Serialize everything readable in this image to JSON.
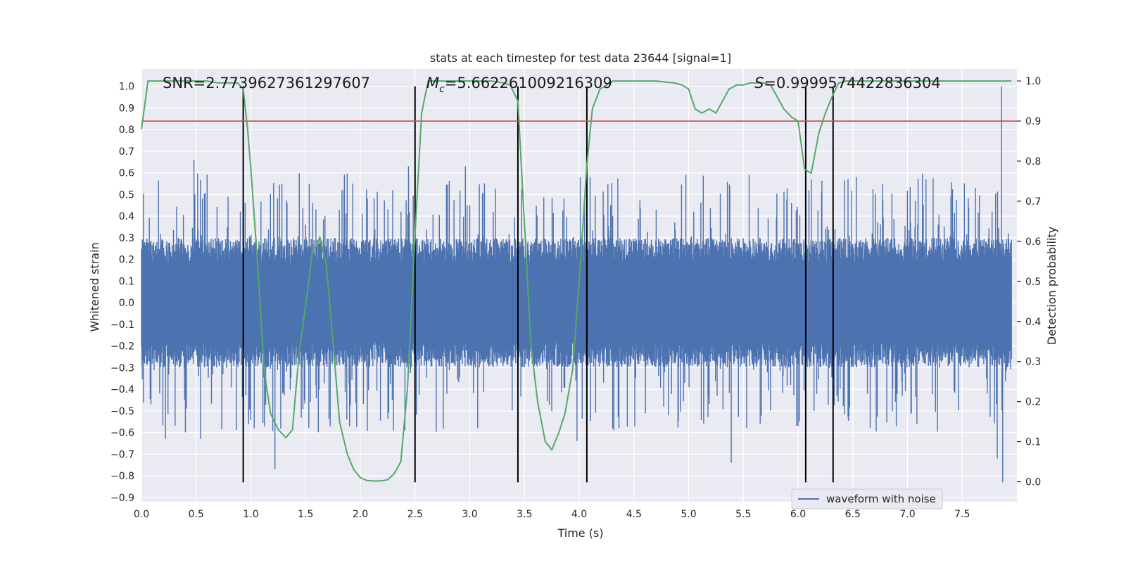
{
  "chart_data": {
    "type": "line",
    "title": "stats at each timestep for test data 23644 [signal=1]",
    "xlabel": "Time (s)",
    "ylabel": "Whitened strain",
    "y2label": "Detection probability",
    "xlim": [
      0.0,
      8.0
    ],
    "ylim": [
      -0.92,
      1.08
    ],
    "y2lim": [
      -0.05,
      1.03
    ],
    "x_ticks": [
      0.0,
      0.5,
      1.0,
      1.5,
      2.0,
      2.5,
      3.0,
      3.5,
      4.0,
      4.5,
      5.0,
      5.5,
      6.0,
      6.5,
      7.0,
      7.5
    ],
    "x_tick_labels": [
      "0.0",
      "0.5",
      "1.0",
      "1.5",
      "2.0",
      "2.5",
      "3.0",
      "3.5",
      "4.0",
      "4.5",
      "5.0",
      "5.5",
      "6.0",
      "6.5",
      "7.0",
      "7.5"
    ],
    "y_ticks": [
      1.0,
      0.9,
      0.8,
      0.7,
      0.6,
      0.5,
      0.4,
      0.3,
      0.2,
      0.1,
      0.0,
      -0.1,
      -0.2,
      -0.3,
      -0.4,
      -0.5,
      -0.6,
      -0.7,
      -0.8,
      -0.9
    ],
    "y_tick_labels": [
      "1.0",
      "0.9",
      "0.8",
      "0.7",
      "0.6",
      "0.5",
      "0.4",
      "0.3",
      "0.2",
      "0.1",
      "0.0",
      "−0.1",
      "−0.2",
      "−0.3",
      "−0.4",
      "−0.5",
      "−0.6",
      "−0.7",
      "−0.8",
      "−0.9"
    ],
    "y2_ticks": [
      1.0,
      0.9,
      0.8,
      0.7,
      0.6,
      0.5,
      0.4,
      0.3,
      0.2,
      0.1,
      0.0
    ],
    "y2_tick_labels": [
      "1.0",
      "0.9",
      "0.8",
      "0.7",
      "0.6",
      "0.5",
      "0.4",
      "0.3",
      "0.2",
      "0.1",
      "0.0"
    ],
    "annotations": {
      "snr": "SNR=2.7739627361297607",
      "mc_symbol": "M",
      "mc_sub": "c",
      "mc_value": "=5.662261009216309",
      "s_symbol": "S",
      "s_value": "=0.9999574422836304"
    },
    "legend": {
      "label": "waveform with noise",
      "position": "lower-right"
    },
    "threshold": {
      "value": 0.9,
      "axis": "y2",
      "color": "#c44e52"
    },
    "vertical_lines": {
      "x": [
        0.93,
        2.5,
        3.44,
        4.07,
        6.07,
        6.32
      ],
      "y_range": [
        -0.83,
        1.0
      ],
      "color": "#000000"
    },
    "waveform": {
      "name": "waveform with noise",
      "color": "#4c72b0",
      "envelope_typical": [
        -0.3,
        0.3
      ],
      "spikes": [
        {
          "x": 0.48,
          "y": 0.66
        },
        {
          "x": 0.54,
          "y": -0.63
        },
        {
          "x": 0.22,
          "y": -0.63
        },
        {
          "x": 1.22,
          "y": -0.77
        },
        {
          "x": 2.44,
          "y": 0.63
        },
        {
          "x": 2.96,
          "y": 0.63
        },
        {
          "x": 3.98,
          "y": -0.64
        },
        {
          "x": 5.39,
          "y": -0.74
        },
        {
          "x": 4.1,
          "y": 0.58
        },
        {
          "x": 7.86,
          "y": 1.0
        },
        {
          "x": 7.87,
          "y": -0.83
        },
        {
          "x": 7.82,
          "y": -0.72
        },
        {
          "x": 6.0,
          "y": -0.57
        },
        {
          "x": 3.0,
          "y": 0.45
        }
      ]
    },
    "series": [
      {
        "name": "detection probability",
        "axis": "y2",
        "color": "#55a868",
        "x": [
          0.0,
          0.06,
          0.12,
          0.3,
          0.5,
          0.6,
          0.7,
          0.8,
          0.88,
          0.93,
          0.97,
          1.0,
          1.06,
          1.12,
          1.18,
          1.25,
          1.32,
          1.38,
          1.44,
          1.5,
          1.56,
          1.63,
          1.69,
          1.75,
          1.81,
          1.88,
          1.94,
          2.0,
          2.06,
          2.12,
          2.19,
          2.25,
          2.31,
          2.37,
          2.43,
          2.5,
          2.56,
          2.62,
          2.7,
          2.8,
          3.0,
          3.2,
          3.31,
          3.37,
          3.44,
          3.5,
          3.56,
          3.62,
          3.69,
          3.75,
          3.81,
          3.87,
          3.94,
          4.0,
          4.07,
          4.12,
          4.19,
          4.25,
          4.31,
          4.38,
          4.5,
          4.7,
          4.87,
          4.94,
          5.0,
          5.06,
          5.12,
          5.19,
          5.25,
          5.31,
          5.37,
          5.44,
          5.5,
          5.56,
          5.62,
          5.69,
          5.75,
          5.81,
          5.87,
          5.94,
          6.0,
          6.06,
          6.12,
          6.19,
          6.25,
          6.31,
          6.37,
          6.44,
          6.5,
          6.56,
          6.7,
          7.0,
          7.5,
          7.95
        ],
        "values": [
          0.88,
          1.0,
          1.0,
          1.0,
          1.0,
          1.0,
          0.995,
          0.995,
          0.995,
          0.98,
          0.88,
          0.78,
          0.55,
          0.28,
          0.17,
          0.13,
          0.11,
          0.13,
          0.32,
          0.44,
          0.57,
          0.61,
          0.54,
          0.35,
          0.15,
          0.07,
          0.03,
          0.01,
          0.003,
          0.002,
          0.002,
          0.005,
          0.02,
          0.05,
          0.23,
          0.62,
          0.92,
          1.0,
          1.0,
          1.0,
          1.0,
          1.0,
          0.995,
          0.99,
          0.95,
          0.64,
          0.34,
          0.2,
          0.1,
          0.08,
          0.12,
          0.17,
          0.28,
          0.5,
          0.79,
          0.93,
          0.98,
          0.99,
          1.0,
          1.0,
          1.0,
          1.0,
          0.995,
          0.99,
          0.98,
          0.93,
          0.92,
          0.93,
          0.92,
          0.95,
          0.98,
          0.99,
          0.99,
          0.995,
          0.995,
          0.995,
          0.99,
          0.96,
          0.93,
          0.91,
          0.9,
          0.78,
          0.77,
          0.87,
          0.92,
          0.96,
          0.995,
          1.0,
          1.0,
          1.0,
          1.0,
          1.0,
          1.0,
          1.0
        ]
      }
    ]
  }
}
